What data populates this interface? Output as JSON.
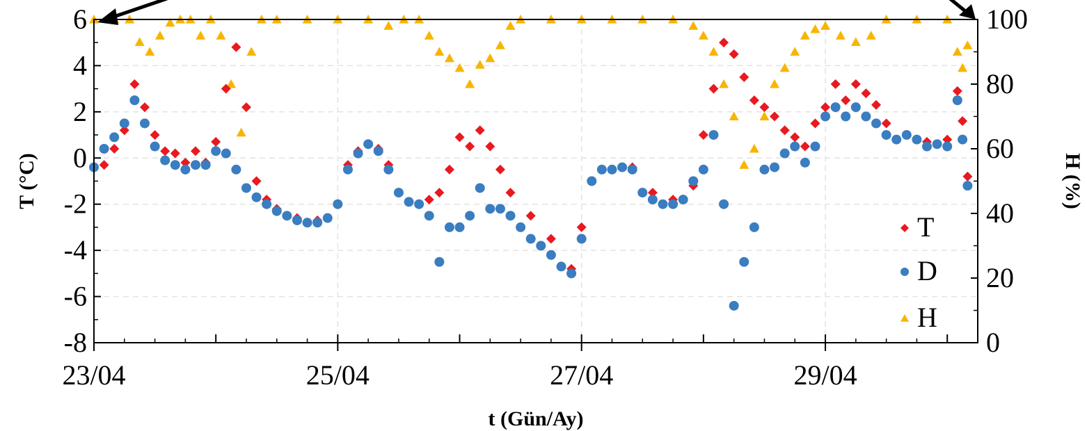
{
  "chart_data": {
    "type": "scatter",
    "xlabel": "t (Gün/Ay)",
    "ylabel_left": "T (°C)",
    "ylabel_right": "H (%)",
    "x_range": [
      "2023-04-23T00:00",
      "2023-04-30T06:00"
    ],
    "x_ticks": [
      {
        "date": "2023-04-23T00:00",
        "label": "23/04"
      },
      {
        "date": "2023-04-25T00:00",
        "label": "25/04"
      },
      {
        "date": "2023-04-27T00:00",
        "label": "27/04"
      },
      {
        "date": "2023-04-29T00:00",
        "label": "29/04"
      }
    ],
    "ylim_left": [
      -8,
      6
    ],
    "yticks_left": [
      "-8",
      "-6",
      "-4",
      "-2",
      "0",
      "2",
      "4",
      "6"
    ],
    "ylim_right": [
      0,
      100
    ],
    "yticks_right": [
      "0",
      "20",
      "40",
      "60",
      "80",
      "100"
    ],
    "grid": true,
    "legend_position": "bottom-right",
    "series": [
      {
        "name": "T",
        "axis": "left",
        "marker": "diamond",
        "color": "#e8191f",
        "points": [
          [
            "2023-04-23T02:00",
            -0.3
          ],
          [
            "2023-04-23T04:00",
            0.4
          ],
          [
            "2023-04-23T06:00",
            1.2
          ],
          [
            "2023-04-23T08:00",
            3.2
          ],
          [
            "2023-04-23T10:00",
            2.2
          ],
          [
            "2023-04-23T12:00",
            1.0
          ],
          [
            "2023-04-23T14:00",
            0.3
          ],
          [
            "2023-04-23T16:00",
            0.2
          ],
          [
            "2023-04-23T18:00",
            -0.2
          ],
          [
            "2023-04-23T20:00",
            0.3
          ],
          [
            "2023-04-23T22:00",
            -0.2
          ],
          [
            "2023-04-24T00:00",
            0.7
          ],
          [
            "2023-04-24T02:00",
            3.0
          ],
          [
            "2023-04-24T04:00",
            4.8
          ],
          [
            "2023-04-24T06:00",
            2.2
          ],
          [
            "2023-04-24T08:00",
            -1.0
          ],
          [
            "2023-04-24T10:00",
            -1.8
          ],
          [
            "2023-04-24T12:00",
            -2.2
          ],
          [
            "2023-04-24T16:00",
            -2.6
          ],
          [
            "2023-04-24T20:00",
            -2.7
          ],
          [
            "2023-04-25T00:00",
            -2.0
          ],
          [
            "2023-04-25T02:00",
            -0.3
          ],
          [
            "2023-04-25T04:00",
            0.3
          ],
          [
            "2023-04-25T06:00",
            0.6
          ],
          [
            "2023-04-25T08:00",
            0.4
          ],
          [
            "2023-04-25T10:00",
            -0.3
          ],
          [
            "2023-04-25T12:00",
            -1.5
          ],
          [
            "2023-04-25T14:00",
            -1.9
          ],
          [
            "2023-04-25T16:00",
            -2.0
          ],
          [
            "2023-04-25T18:00",
            -1.8
          ],
          [
            "2023-04-25T20:00",
            -1.5
          ],
          [
            "2023-04-25T22:00",
            -0.5
          ],
          [
            "2023-04-26T00:00",
            0.9
          ],
          [
            "2023-04-26T02:00",
            0.5
          ],
          [
            "2023-04-26T04:00",
            1.2
          ],
          [
            "2023-04-26T06:00",
            0.5
          ],
          [
            "2023-04-26T08:00",
            -0.5
          ],
          [
            "2023-04-26T10:00",
            -1.5
          ],
          [
            "2023-04-26T14:00",
            -2.5
          ],
          [
            "2023-04-26T18:00",
            -3.5
          ],
          [
            "2023-04-26T22:00",
            -4.8
          ],
          [
            "2023-04-27T00:00",
            -3.0
          ],
          [
            "2023-04-27T02:00",
            -1.0
          ],
          [
            "2023-04-27T06:00",
            -0.5
          ],
          [
            "2023-04-27T10:00",
            -0.4
          ],
          [
            "2023-04-27T14:00",
            -1.5
          ],
          [
            "2023-04-27T18:00",
            -1.8
          ],
          [
            "2023-04-27T22:00",
            -1.2
          ],
          [
            "2023-04-28T00:00",
            1.0
          ],
          [
            "2023-04-28T02:00",
            3.0
          ],
          [
            "2023-04-28T04:00",
            5.0
          ],
          [
            "2023-04-28T06:00",
            4.5
          ],
          [
            "2023-04-28T08:00",
            3.5
          ],
          [
            "2023-04-28T10:00",
            2.5
          ],
          [
            "2023-04-28T12:00",
            2.2
          ],
          [
            "2023-04-28T14:00",
            1.8
          ],
          [
            "2023-04-28T16:00",
            1.2
          ],
          [
            "2023-04-28T18:00",
            0.9
          ],
          [
            "2023-04-28T20:00",
            0.5
          ],
          [
            "2023-04-28T22:00",
            1.5
          ],
          [
            "2023-04-29T00:00",
            2.2
          ],
          [
            "2023-04-29T02:00",
            3.2
          ],
          [
            "2023-04-29T04:00",
            2.5
          ],
          [
            "2023-04-29T06:00",
            3.2
          ],
          [
            "2023-04-29T08:00",
            2.8
          ],
          [
            "2023-04-29T10:00",
            2.3
          ],
          [
            "2023-04-29T12:00",
            1.5
          ],
          [
            "2023-04-29T16:00",
            1.0
          ],
          [
            "2023-04-29T20:00",
            0.7
          ],
          [
            "2023-04-30T00:00",
            0.8
          ],
          [
            "2023-04-30T02:00",
            2.9
          ],
          [
            "2023-04-30T03:00",
            1.6
          ],
          [
            "2023-04-30T04:00",
            -0.8
          ]
        ]
      },
      {
        "name": "D",
        "axis": "left",
        "marker": "circle",
        "color": "#3a7dc0",
        "points": [
          [
            "2023-04-23T00:00",
            -0.4
          ],
          [
            "2023-04-23T02:00",
            0.4
          ],
          [
            "2023-04-23T04:00",
            0.9
          ],
          [
            "2023-04-23T06:00",
            1.5
          ],
          [
            "2023-04-23T08:00",
            2.5
          ],
          [
            "2023-04-23T10:00",
            1.5
          ],
          [
            "2023-04-23T12:00",
            0.5
          ],
          [
            "2023-04-23T14:00",
            -0.1
          ],
          [
            "2023-04-23T16:00",
            -0.3
          ],
          [
            "2023-04-23T18:00",
            -0.5
          ],
          [
            "2023-04-23T20:00",
            -0.3
          ],
          [
            "2023-04-23T22:00",
            -0.3
          ],
          [
            "2023-04-24T00:00",
            0.3
          ],
          [
            "2023-04-24T02:00",
            0.2
          ],
          [
            "2023-04-24T04:00",
            -0.5
          ],
          [
            "2023-04-24T06:00",
            -1.3
          ],
          [
            "2023-04-24T08:00",
            -1.7
          ],
          [
            "2023-04-24T10:00",
            -2.0
          ],
          [
            "2023-04-24T12:00",
            -2.3
          ],
          [
            "2023-04-24T14:00",
            -2.5
          ],
          [
            "2023-04-24T16:00",
            -2.7
          ],
          [
            "2023-04-24T18:00",
            -2.8
          ],
          [
            "2023-04-24T20:00",
            -2.8
          ],
          [
            "2023-04-24T22:00",
            -2.6
          ],
          [
            "2023-04-25T00:00",
            -2.0
          ],
          [
            "2023-04-25T02:00",
            -0.5
          ],
          [
            "2023-04-25T04:00",
            0.2
          ],
          [
            "2023-04-25T06:00",
            0.6
          ],
          [
            "2023-04-25T08:00",
            0.3
          ],
          [
            "2023-04-25T10:00",
            -0.5
          ],
          [
            "2023-04-25T12:00",
            -1.5
          ],
          [
            "2023-04-25T14:00",
            -1.9
          ],
          [
            "2023-04-25T16:00",
            -2.0
          ],
          [
            "2023-04-25T18:00",
            -2.5
          ],
          [
            "2023-04-25T20:00",
            -4.5
          ],
          [
            "2023-04-25T22:00",
            -3.0
          ],
          [
            "2023-04-26T00:00",
            -3.0
          ],
          [
            "2023-04-26T02:00",
            -2.5
          ],
          [
            "2023-04-26T04:00",
            -1.3
          ],
          [
            "2023-04-26T06:00",
            -2.2
          ],
          [
            "2023-04-26T08:00",
            -2.2
          ],
          [
            "2023-04-26T10:00",
            -2.5
          ],
          [
            "2023-04-26T12:00",
            -3.0
          ],
          [
            "2023-04-26T14:00",
            -3.5
          ],
          [
            "2023-04-26T16:00",
            -3.8
          ],
          [
            "2023-04-26T18:00",
            -4.2
          ],
          [
            "2023-04-26T20:00",
            -4.7
          ],
          [
            "2023-04-26T22:00",
            -5.0
          ],
          [
            "2023-04-27T00:00",
            -3.5
          ],
          [
            "2023-04-27T02:00",
            -1.0
          ],
          [
            "2023-04-27T04:00",
            -0.5
          ],
          [
            "2023-04-27T06:00",
            -0.5
          ],
          [
            "2023-04-27T08:00",
            -0.4
          ],
          [
            "2023-04-27T10:00",
            -0.5
          ],
          [
            "2023-04-27T12:00",
            -1.5
          ],
          [
            "2023-04-27T14:00",
            -1.8
          ],
          [
            "2023-04-27T16:00",
            -2.0
          ],
          [
            "2023-04-27T18:00",
            -2.0
          ],
          [
            "2023-04-27T20:00",
            -1.8
          ],
          [
            "2023-04-27T22:00",
            -1.0
          ],
          [
            "2023-04-28T00:00",
            -0.5
          ],
          [
            "2023-04-28T02:00",
            1.0
          ],
          [
            "2023-04-28T04:00",
            -2.0
          ],
          [
            "2023-04-28T06:00",
            -6.4
          ],
          [
            "2023-04-28T08:00",
            -4.5
          ],
          [
            "2023-04-28T10:00",
            -3.0
          ],
          [
            "2023-04-28T12:00",
            -0.5
          ],
          [
            "2023-04-28T14:00",
            -0.4
          ],
          [
            "2023-04-28T16:00",
            0.2
          ],
          [
            "2023-04-28T18:00",
            0.5
          ],
          [
            "2023-04-28T20:00",
            -0.2
          ],
          [
            "2023-04-28T22:00",
            0.5
          ],
          [
            "2023-04-29T00:00",
            1.8
          ],
          [
            "2023-04-29T02:00",
            2.2
          ],
          [
            "2023-04-29T04:00",
            1.8
          ],
          [
            "2023-04-29T06:00",
            2.2
          ],
          [
            "2023-04-29T08:00",
            1.8
          ],
          [
            "2023-04-29T10:00",
            1.5
          ],
          [
            "2023-04-29T12:00",
            1.0
          ],
          [
            "2023-04-29T14:00",
            0.8
          ],
          [
            "2023-04-29T16:00",
            1.0
          ],
          [
            "2023-04-29T18:00",
            0.8
          ],
          [
            "2023-04-29T20:00",
            0.5
          ],
          [
            "2023-04-29T22:00",
            0.6
          ],
          [
            "2023-04-30T00:00",
            0.5
          ],
          [
            "2023-04-30T02:00",
            2.5
          ],
          [
            "2023-04-30T03:00",
            0.8
          ],
          [
            "2023-04-30T04:00",
            -1.2
          ]
        ]
      },
      {
        "name": "H",
        "axis": "right",
        "marker": "triangle",
        "color": "#f7b500",
        "points": [
          [
            "2023-04-23T00:00",
            100
          ],
          [
            "2023-04-23T04:00",
            100
          ],
          [
            "2023-04-23T07:00",
            100
          ],
          [
            "2023-04-23T09:00",
            93
          ],
          [
            "2023-04-23T11:00",
            90
          ],
          [
            "2023-04-23T13:00",
            95
          ],
          [
            "2023-04-23T15:00",
            99
          ],
          [
            "2023-04-23T17:00",
            100
          ],
          [
            "2023-04-23T19:00",
            100
          ],
          [
            "2023-04-23T21:00",
            95
          ],
          [
            "2023-04-23T23:00",
            100
          ],
          [
            "2023-04-24T01:00",
            95
          ],
          [
            "2023-04-24T03:00",
            80
          ],
          [
            "2023-04-24T05:00",
            65
          ],
          [
            "2023-04-24T07:00",
            90
          ],
          [
            "2023-04-24T09:00",
            100
          ],
          [
            "2023-04-24T12:00",
            100
          ],
          [
            "2023-04-24T18:00",
            100
          ],
          [
            "2023-04-25T00:00",
            100
          ],
          [
            "2023-04-25T06:00",
            100
          ],
          [
            "2023-04-25T10:00",
            98
          ],
          [
            "2023-04-25T13:00",
            100
          ],
          [
            "2023-04-25T16:00",
            100
          ],
          [
            "2023-04-25T18:00",
            95
          ],
          [
            "2023-04-25T20:00",
            90
          ],
          [
            "2023-04-25T22:00",
            88
          ],
          [
            "2023-04-26T00:00",
            85
          ],
          [
            "2023-04-26T02:00",
            80
          ],
          [
            "2023-04-26T04:00",
            86
          ],
          [
            "2023-04-26T06:00",
            88
          ],
          [
            "2023-04-26T08:00",
            92
          ],
          [
            "2023-04-26T10:00",
            98
          ],
          [
            "2023-04-26T12:00",
            100
          ],
          [
            "2023-04-26T18:00",
            100
          ],
          [
            "2023-04-27T00:00",
            100
          ],
          [
            "2023-04-27T06:00",
            100
          ],
          [
            "2023-04-27T12:00",
            100
          ],
          [
            "2023-04-27T18:00",
            100
          ],
          [
            "2023-04-27T22:00",
            98
          ],
          [
            "2023-04-28T00:00",
            95
          ],
          [
            "2023-04-28T02:00",
            90
          ],
          [
            "2023-04-28T04:00",
            80
          ],
          [
            "2023-04-28T06:00",
            70
          ],
          [
            "2023-04-28T08:00",
            55
          ],
          [
            "2023-04-28T10:00",
            60
          ],
          [
            "2023-04-28T12:00",
            70
          ],
          [
            "2023-04-28T14:00",
            80
          ],
          [
            "2023-04-28T16:00",
            85
          ],
          [
            "2023-04-28T18:00",
            90
          ],
          [
            "2023-04-28T20:00",
            95
          ],
          [
            "2023-04-28T22:00",
            97
          ],
          [
            "2023-04-29T00:00",
            98
          ],
          [
            "2023-04-29T03:00",
            95
          ],
          [
            "2023-04-29T06:00",
            93
          ],
          [
            "2023-04-29T09:00",
            95
          ],
          [
            "2023-04-29T12:00",
            100
          ],
          [
            "2023-04-29T18:00",
            100
          ],
          [
            "2023-04-30T00:00",
            100
          ],
          [
            "2023-04-30T02:00",
            90
          ],
          [
            "2023-04-30T03:00",
            85
          ],
          [
            "2023-04-30T04:00",
            92
          ]
        ]
      }
    ]
  }
}
